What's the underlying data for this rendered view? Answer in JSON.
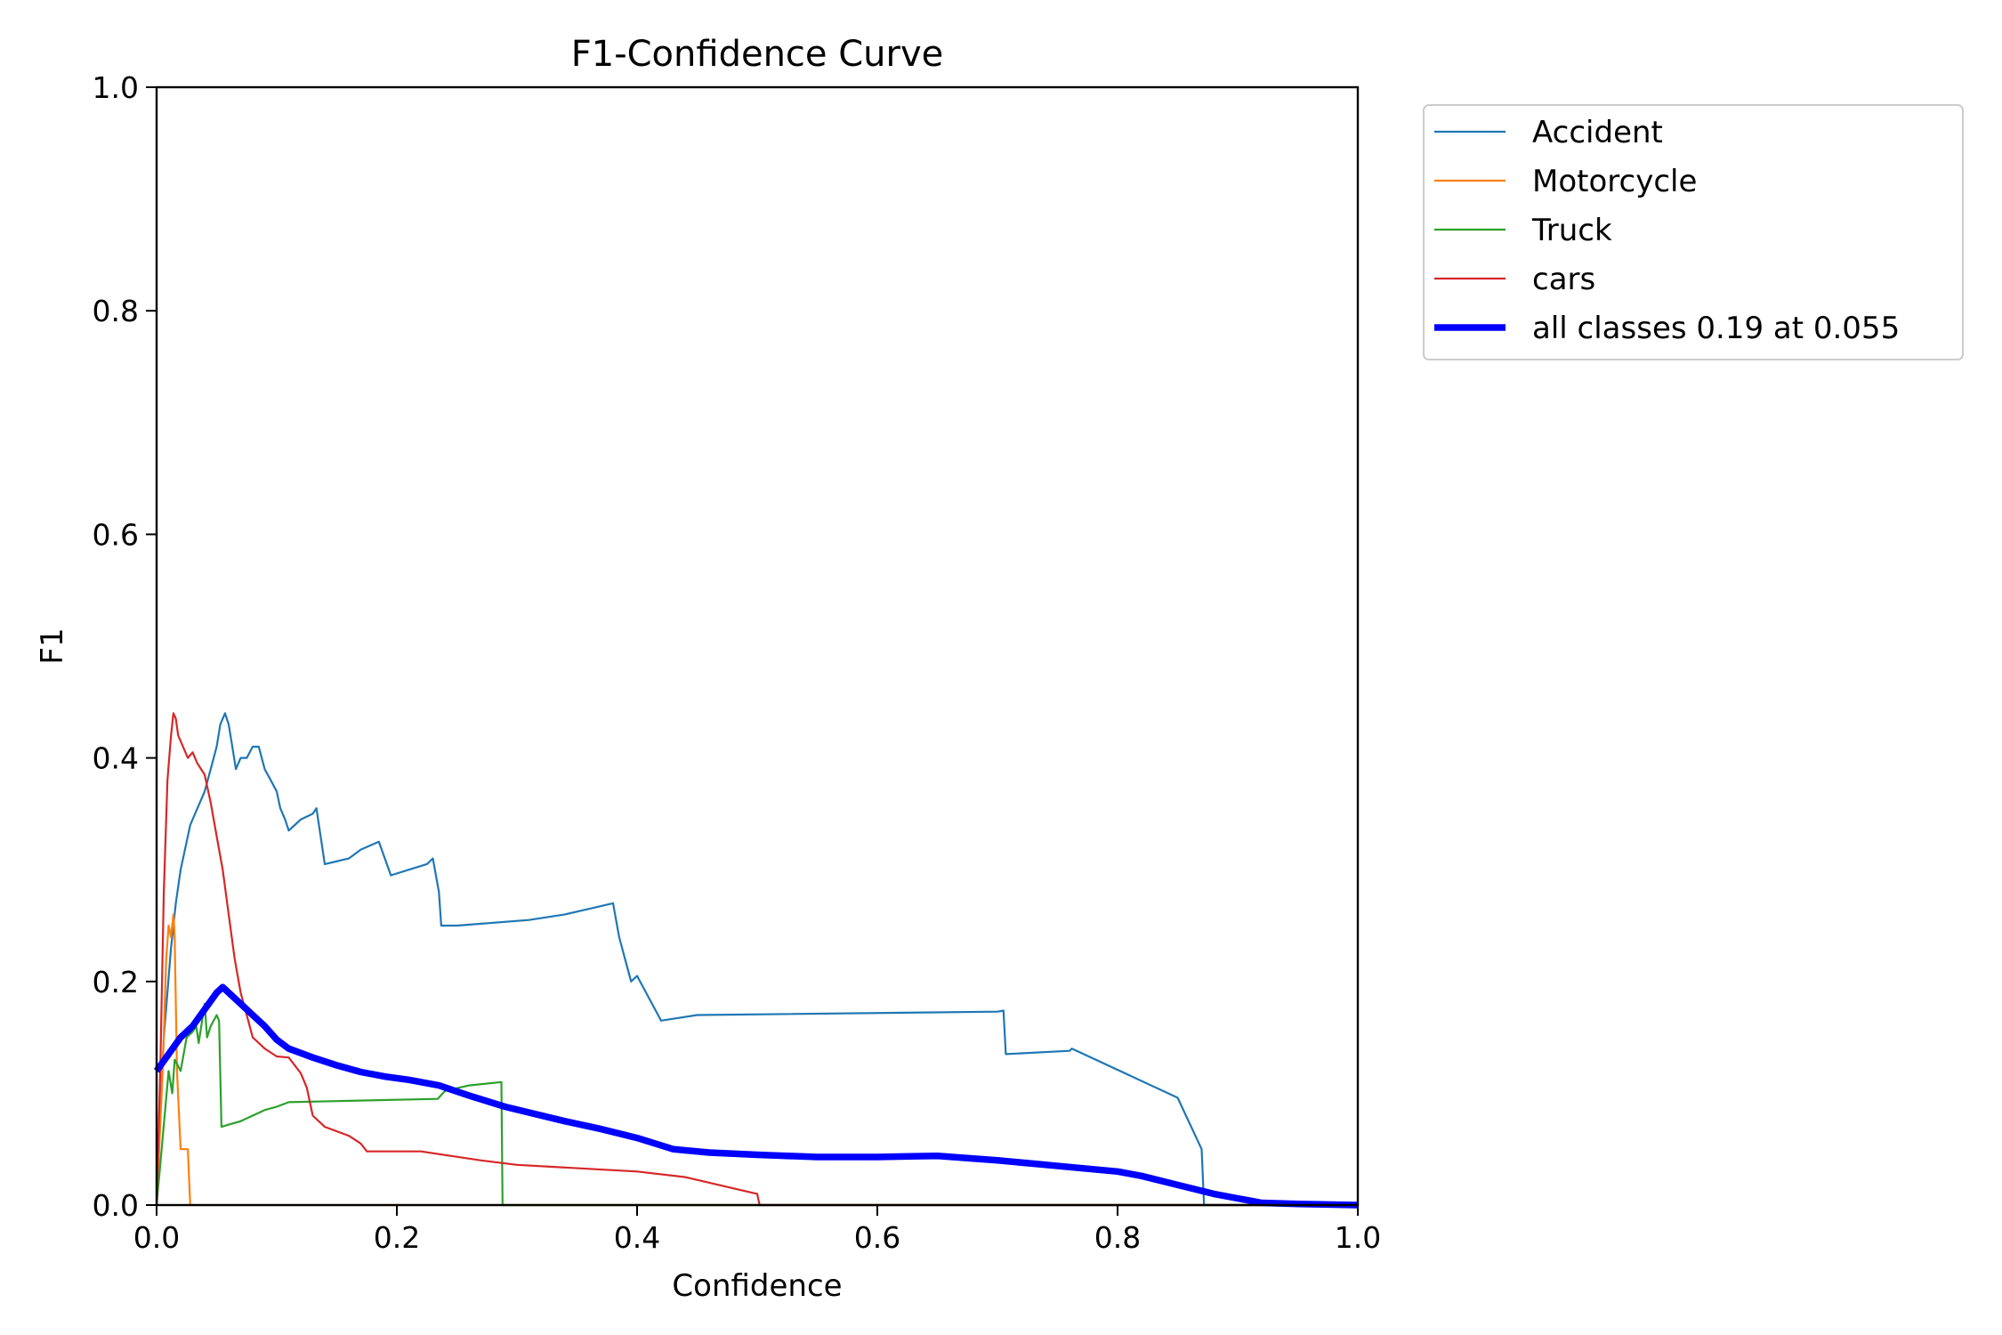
{
  "chart_data": {
    "type": "line",
    "title": "F1-Confidence Curve",
    "xlabel": "Confidence",
    "ylabel": "F1",
    "xlim": [
      0,
      1
    ],
    "ylim": [
      0,
      1
    ],
    "xticks": [
      "0.0",
      "0.2",
      "0.4",
      "0.6",
      "0.8",
      "1.0"
    ],
    "yticks": [
      "0.0",
      "0.2",
      "0.4",
      "0.6",
      "0.8",
      "1.0"
    ],
    "grid": false,
    "legend_position": "outside-top-right",
    "series": [
      {
        "name": "Accident",
        "color": "#1f77b4",
        "width": "thin",
        "points": [
          [
            0.0,
            0.0
          ],
          [
            0.002,
            0.05
          ],
          [
            0.006,
            0.15
          ],
          [
            0.012,
            0.23
          ],
          [
            0.016,
            0.27
          ],
          [
            0.02,
            0.3
          ],
          [
            0.024,
            0.32
          ],
          [
            0.028,
            0.34
          ],
          [
            0.032,
            0.35
          ],
          [
            0.036,
            0.36
          ],
          [
            0.04,
            0.37
          ],
          [
            0.045,
            0.39
          ],
          [
            0.05,
            0.41
          ],
          [
            0.053,
            0.43
          ],
          [
            0.057,
            0.44
          ],
          [
            0.06,
            0.43
          ],
          [
            0.063,
            0.41
          ],
          [
            0.066,
            0.39
          ],
          [
            0.07,
            0.4
          ],
          [
            0.075,
            0.4
          ],
          [
            0.08,
            0.41
          ],
          [
            0.085,
            0.41
          ],
          [
            0.09,
            0.39
          ],
          [
            0.095,
            0.38
          ],
          [
            0.1,
            0.37
          ],
          [
            0.103,
            0.355
          ],
          [
            0.107,
            0.345
          ],
          [
            0.11,
            0.335
          ],
          [
            0.115,
            0.34
          ],
          [
            0.12,
            0.345
          ],
          [
            0.13,
            0.35
          ],
          [
            0.133,
            0.355
          ],
          [
            0.14,
            0.305
          ],
          [
            0.16,
            0.31
          ],
          [
            0.17,
            0.318
          ],
          [
            0.185,
            0.325
          ],
          [
            0.195,
            0.295
          ],
          [
            0.21,
            0.3
          ],
          [
            0.225,
            0.305
          ],
          [
            0.23,
            0.31
          ],
          [
            0.235,
            0.28
          ],
          [
            0.237,
            0.25
          ],
          [
            0.25,
            0.25
          ],
          [
            0.31,
            0.255
          ],
          [
            0.34,
            0.26
          ],
          [
            0.36,
            0.265
          ],
          [
            0.38,
            0.27
          ],
          [
            0.385,
            0.24
          ],
          [
            0.39,
            0.22
          ],
          [
            0.395,
            0.2
          ],
          [
            0.4,
            0.205
          ],
          [
            0.42,
            0.165
          ],
          [
            0.45,
            0.17
          ],
          [
            0.7,
            0.173
          ],
          [
            0.705,
            0.174
          ],
          [
            0.707,
            0.135
          ],
          [
            0.76,
            0.138
          ],
          [
            0.762,
            0.14
          ],
          [
            0.85,
            0.096
          ],
          [
            0.87,
            0.05
          ],
          [
            0.872,
            0.0
          ],
          [
            1.0,
            0.0
          ]
        ]
      },
      {
        "name": "Motorcycle",
        "color": "#ff7f0e",
        "width": "thin",
        "points": [
          [
            0.0,
            0.0
          ],
          [
            0.005,
            0.12
          ],
          [
            0.008,
            0.22
          ],
          [
            0.01,
            0.25
          ],
          [
            0.012,
            0.24
          ],
          [
            0.014,
            0.26
          ],
          [
            0.015,
            0.24
          ],
          [
            0.017,
            0.12
          ],
          [
            0.02,
            0.05
          ],
          [
            0.026,
            0.05
          ],
          [
            0.028,
            0.0
          ],
          [
            1.0,
            0.0
          ]
        ]
      },
      {
        "name": "Truck",
        "color": "#2ca02c",
        "width": "thin",
        "points": [
          [
            0.0,
            0.0
          ],
          [
            0.005,
            0.06
          ],
          [
            0.01,
            0.12
          ],
          [
            0.013,
            0.1
          ],
          [
            0.015,
            0.13
          ],
          [
            0.02,
            0.12
          ],
          [
            0.025,
            0.15
          ],
          [
            0.03,
            0.155
          ],
          [
            0.033,
            0.16
          ],
          [
            0.035,
            0.145
          ],
          [
            0.04,
            0.18
          ],
          [
            0.042,
            0.15
          ],
          [
            0.045,
            0.16
          ],
          [
            0.05,
            0.17
          ],
          [
            0.052,
            0.165
          ],
          [
            0.054,
            0.07
          ],
          [
            0.06,
            0.072
          ],
          [
            0.07,
            0.075
          ],
          [
            0.08,
            0.08
          ],
          [
            0.09,
            0.085
          ],
          [
            0.1,
            0.088
          ],
          [
            0.11,
            0.092
          ],
          [
            0.15,
            0.093
          ],
          [
            0.234,
            0.095
          ],
          [
            0.24,
            0.102
          ],
          [
            0.26,
            0.107
          ],
          [
            0.287,
            0.11
          ],
          [
            0.288,
            0.0
          ],
          [
            1.0,
            0.0
          ]
        ]
      },
      {
        "name": "cars",
        "color": "#d62728",
        "width": "thin",
        "points": [
          [
            0.0,
            0.0
          ],
          [
            0.003,
            0.12
          ],
          [
            0.006,
            0.28
          ],
          [
            0.009,
            0.38
          ],
          [
            0.012,
            0.42
          ],
          [
            0.014,
            0.44
          ],
          [
            0.016,
            0.435
          ],
          [
            0.018,
            0.42
          ],
          [
            0.022,
            0.41
          ],
          [
            0.026,
            0.4
          ],
          [
            0.03,
            0.405
          ],
          [
            0.034,
            0.395
          ],
          [
            0.04,
            0.385
          ],
          [
            0.045,
            0.36
          ],
          [
            0.05,
            0.33
          ],
          [
            0.055,
            0.3
          ],
          [
            0.06,
            0.26
          ],
          [
            0.065,
            0.22
          ],
          [
            0.07,
            0.19
          ],
          [
            0.075,
            0.17
          ],
          [
            0.08,
            0.15
          ],
          [
            0.09,
            0.14
          ],
          [
            0.1,
            0.133
          ],
          [
            0.11,
            0.132
          ],
          [
            0.12,
            0.118
          ],
          [
            0.125,
            0.105
          ],
          [
            0.13,
            0.08
          ],
          [
            0.14,
            0.07
          ],
          [
            0.16,
            0.062
          ],
          [
            0.17,
            0.055
          ],
          [
            0.175,
            0.048
          ],
          [
            0.22,
            0.048
          ],
          [
            0.27,
            0.04
          ],
          [
            0.3,
            0.036
          ],
          [
            0.4,
            0.03
          ],
          [
            0.44,
            0.025
          ],
          [
            0.48,
            0.015
          ],
          [
            0.5,
            0.01
          ],
          [
            0.502,
            0.0
          ],
          [
            1.0,
            0.0
          ]
        ]
      },
      {
        "name": "all classes 0.19 at 0.055",
        "color": "#0000ff",
        "width": "thick",
        "points": [
          [
            0.0,
            0.12
          ],
          [
            0.01,
            0.135
          ],
          [
            0.02,
            0.15
          ],
          [
            0.03,
            0.16
          ],
          [
            0.04,
            0.175
          ],
          [
            0.05,
            0.19
          ],
          [
            0.055,
            0.195
          ],
          [
            0.06,
            0.19
          ],
          [
            0.07,
            0.18
          ],
          [
            0.08,
            0.17
          ],
          [
            0.09,
            0.16
          ],
          [
            0.1,
            0.148
          ],
          [
            0.11,
            0.14
          ],
          [
            0.13,
            0.132
          ],
          [
            0.15,
            0.125
          ],
          [
            0.17,
            0.119
          ],
          [
            0.19,
            0.115
          ],
          [
            0.21,
            0.112
          ],
          [
            0.235,
            0.107
          ],
          [
            0.26,
            0.098
          ],
          [
            0.29,
            0.088
          ],
          [
            0.34,
            0.075
          ],
          [
            0.37,
            0.068
          ],
          [
            0.4,
            0.06
          ],
          [
            0.43,
            0.05
          ],
          [
            0.46,
            0.047
          ],
          [
            0.5,
            0.045
          ],
          [
            0.55,
            0.043
          ],
          [
            0.6,
            0.043
          ],
          [
            0.65,
            0.044
          ],
          [
            0.7,
            0.04
          ],
          [
            0.73,
            0.037
          ],
          [
            0.76,
            0.034
          ],
          [
            0.8,
            0.03
          ],
          [
            0.82,
            0.026
          ],
          [
            0.85,
            0.018
          ],
          [
            0.88,
            0.01
          ],
          [
            0.9,
            0.006
          ],
          [
            0.92,
            0.002
          ],
          [
            0.95,
            0.001
          ],
          [
            1.0,
            0.0
          ]
        ]
      }
    ]
  }
}
